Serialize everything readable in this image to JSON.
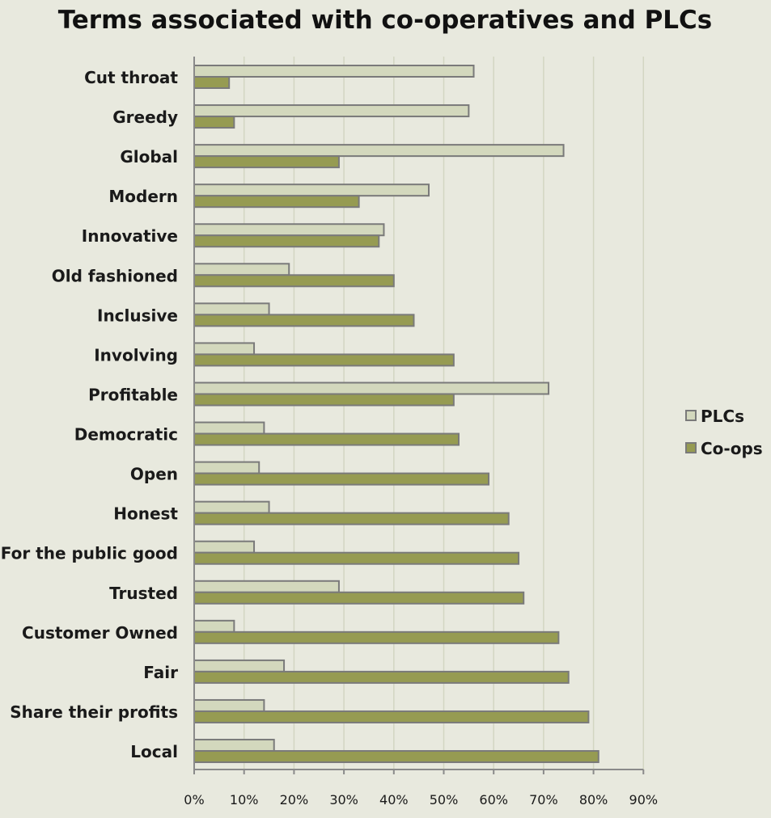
{
  "chart_data": {
    "type": "bar",
    "orientation": "horizontal",
    "title": "Terms associated with co-operatives and PLCs",
    "xlabel": "",
    "ylabel": "",
    "xlim": [
      0,
      90
    ],
    "x_ticks": [
      "0%",
      "10%",
      "20%",
      "30%",
      "40%",
      "50%",
      "60%",
      "70%",
      "80%",
      "90%"
    ],
    "grid": "vertical",
    "legend_position": "right",
    "categories": [
      "Cut throat",
      "Greedy",
      "Global",
      "Modern",
      "Innovative",
      "Old fashioned",
      "Inclusive",
      "Involving",
      "Profitable",
      "Democratic",
      "Open",
      "Honest",
      "For the public good",
      "Trusted",
      "Customer Owned",
      "Fair",
      "Share their profits",
      "Local"
    ],
    "series": [
      {
        "name": "PLCs",
        "color": "#d3d8bd",
        "values": [
          56,
          55,
          74,
          47,
          38,
          19,
          15,
          12,
          71,
          14,
          13,
          15,
          12,
          29,
          8,
          18,
          14,
          16
        ]
      },
      {
        "name": "Co-ops",
        "color": "#969b52",
        "values": [
          7,
          8,
          29,
          33,
          37,
          40,
          44,
          52,
          52,
          53,
          59,
          63,
          65,
          66,
          73,
          75,
          79,
          81
        ]
      }
    ]
  },
  "colors": {
    "background": "#e8e9de",
    "bar_stroke": "#7a7a7a",
    "gridline": "#d3d6c2"
  }
}
